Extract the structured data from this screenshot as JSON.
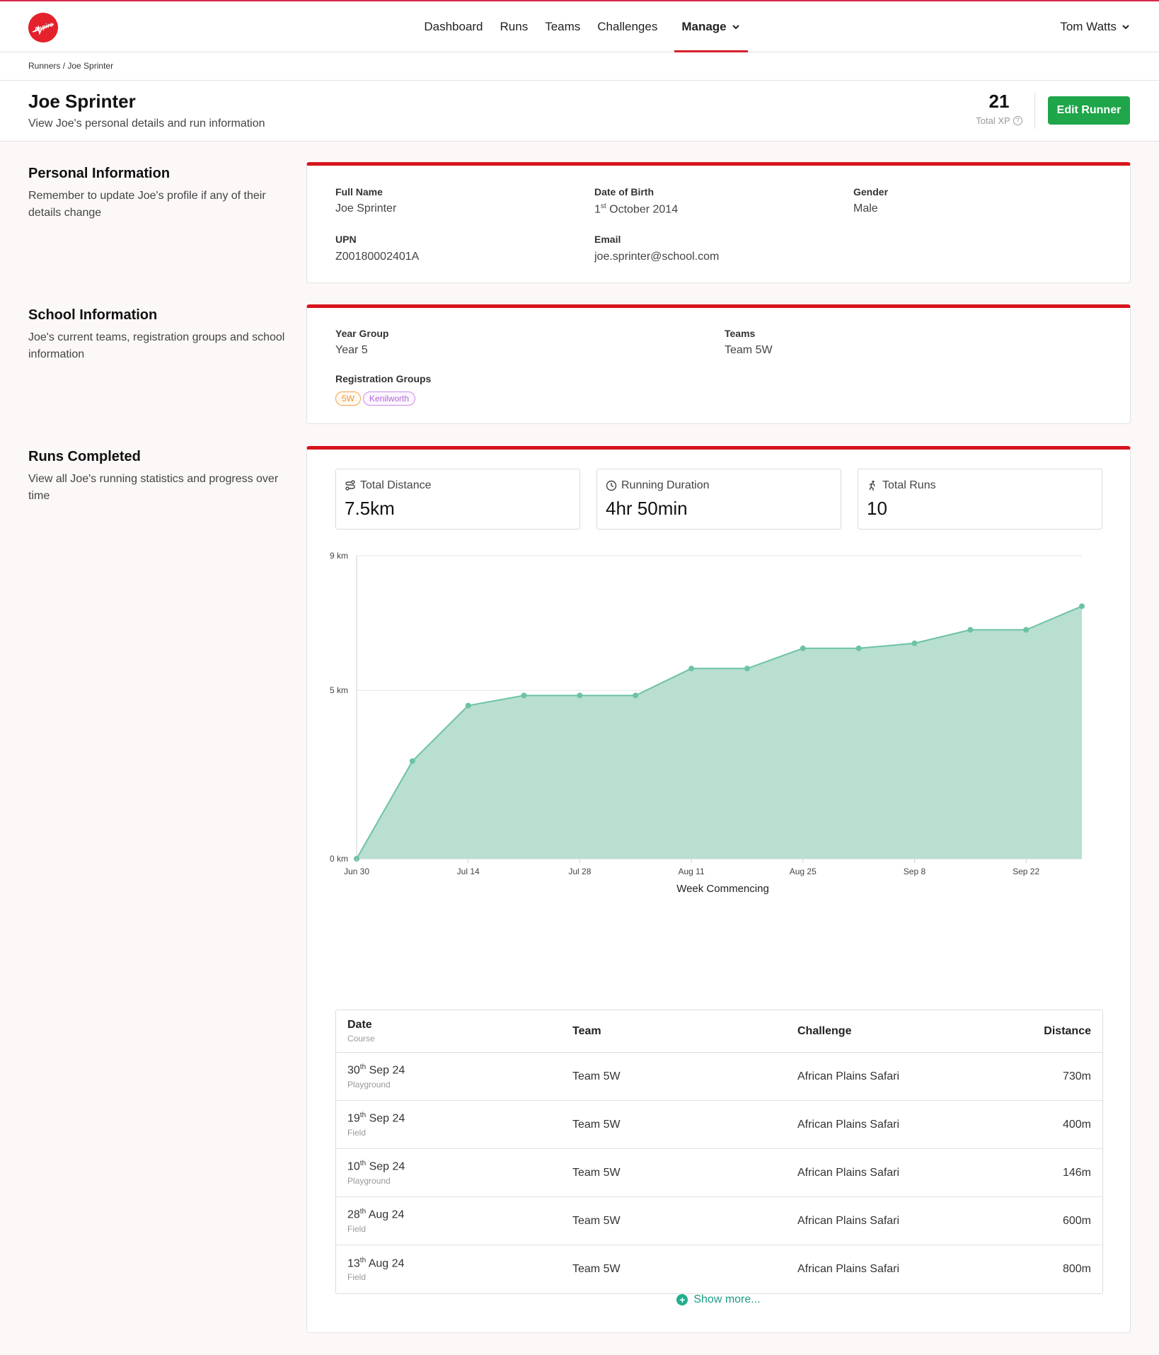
{
  "brand": {
    "logo_text": "Aspire",
    "accent": "#d6141c",
    "primary_button": "#1fa54a",
    "chart_fill": "#b9dfd1",
    "chart_line": "#6cc3a4"
  },
  "nav": {
    "items": [
      {
        "label": "Dashboard"
      },
      {
        "label": "Runs"
      },
      {
        "label": "Teams"
      },
      {
        "label": "Challenges"
      },
      {
        "label": "Manage"
      }
    ],
    "user": "Tom Watts"
  },
  "breadcrumb": {
    "parent": "Runners",
    "separator": " / ",
    "current": "Joe Sprinter"
  },
  "header": {
    "title": "Joe Sprinter",
    "subtitle": "View Joe's personal details and run information",
    "xp_value": "21",
    "xp_label": "Total XP",
    "edit_button": "Edit Runner"
  },
  "personal": {
    "title": "Personal Information",
    "desc": "Remember to update Joe's profile if any of their details change",
    "full_name_label": "Full Name",
    "full_name": "Joe Sprinter",
    "dob_label": "Date of Birth",
    "dob_day": "1",
    "dob_suffix": "st",
    "dob_rest": " October 2014",
    "gender_label": "Gender",
    "gender": "Male",
    "upn_label": "UPN",
    "upn": "Z00180002401A",
    "email_label": "Email",
    "email": "joe.sprinter@school.com"
  },
  "school": {
    "title": "School Information",
    "desc": "Joe's current teams, registration groups and school information",
    "year_label": "Year Group",
    "year": "Year 5",
    "teams_label": "Teams",
    "teams": "Team 5W",
    "groups_label": "Registration Groups",
    "groups": [
      "5W",
      "Kenilworth"
    ]
  },
  "runs": {
    "title": "Runs Completed",
    "desc": "View all Joe's running statistics and progress over time",
    "stats": [
      {
        "label": "Total Distance",
        "value": "7.5km",
        "icon": "route-icon"
      },
      {
        "label": "Running Duration",
        "value": "4hr 50min",
        "icon": "clock-icon"
      },
      {
        "label": "Total Runs",
        "value": "10",
        "icon": "runner-icon"
      }
    ],
    "table": {
      "headers": {
        "date": "Date",
        "date_sub": "Course",
        "team": "Team",
        "challenge": "Challenge",
        "distance": "Distance"
      },
      "rows": [
        {
          "day": "30",
          "suffix": "th",
          "rest": " Sep 24",
          "course": "Playground",
          "team": "Team 5W",
          "challenge": "African Plains Safari",
          "distance": "730m"
        },
        {
          "day": "19",
          "suffix": "th",
          "rest": " Sep 24",
          "course": "Field",
          "team": "Team 5W",
          "challenge": "African Plains Safari",
          "distance": "400m"
        },
        {
          "day": "10",
          "suffix": "th",
          "rest": " Sep 24",
          "course": "Playground",
          "team": "Team 5W",
          "challenge": "African Plains Safari",
          "distance": "146m"
        },
        {
          "day": "28",
          "suffix": "th",
          "rest": " Aug 24",
          "course": "Field",
          "team": "Team 5W",
          "challenge": "African Plains Safari",
          "distance": "600m"
        },
        {
          "day": "13",
          "suffix": "th",
          "rest": " Aug 24",
          "course": "Field",
          "team": "Team 5W",
          "challenge": "African Plains Safari",
          "distance": "800m"
        }
      ]
    },
    "show_more": "Show more..."
  },
  "chart_data": {
    "type": "area",
    "xlabel": "Week Commencing",
    "ylabel": "",
    "y_unit": " km",
    "ylim": [
      0,
      9
    ],
    "y_ticks": [
      0,
      5,
      9
    ],
    "x_ticks": [
      "Jun 30",
      "Jul 14",
      "Jul 28",
      "Aug 11",
      "Aug 25",
      "Sep 8",
      "Sep 22"
    ],
    "x": [
      "Jun 30",
      "Jul 7",
      "Jul 14",
      "Jul 21",
      "Jul 28",
      "Aug 4",
      "Aug 11",
      "Aug 18",
      "Aug 25",
      "Sep 1",
      "Sep 8",
      "Sep 15",
      "Sep 22",
      "Sep 29"
    ],
    "series": [
      {
        "values": [
          0,
          2.9,
          4.55,
          4.85,
          4.85,
          4.85,
          5.65,
          5.65,
          6.25,
          6.25,
          6.4,
          6.8,
          6.8,
          7.5
        ]
      }
    ],
    "grid": true,
    "legend": "none"
  }
}
